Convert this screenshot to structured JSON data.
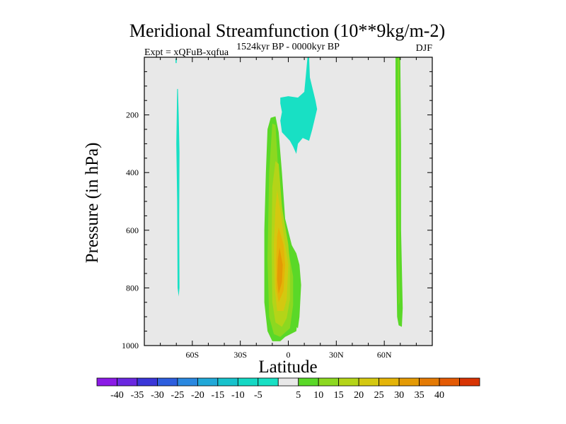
{
  "chart_data": {
    "type": "contour",
    "title": "Meridional Streamfunction (10**9kg/m-2)",
    "experiment": "Expt = xQFuB-xqfua",
    "period": "1524kyr BP - 0000kyr BP",
    "season": "DJF",
    "xlabel": "Latitude",
    "ylabel": "Pressure (in hPa)",
    "xlim": [
      -90,
      90
    ],
    "ylim": [
      1000,
      0
    ],
    "x_ticks": [
      {
        "value": -60,
        "label": "60S"
      },
      {
        "value": -30,
        "label": "30S"
      },
      {
        "value": 0,
        "label": "0"
      },
      {
        "value": 30,
        "label": "30N"
      },
      {
        "value": 60,
        "label": "60N"
      }
    ],
    "y_ticks": [
      {
        "value": 200,
        "label": "200"
      },
      {
        "value": 400,
        "label": "400"
      },
      {
        "value": 600,
        "label": "600"
      },
      {
        "value": 800,
        "label": "800"
      },
      {
        "value": 1000,
        "label": "1000"
      }
    ],
    "background_color": "#e8e8e8",
    "colorbar": {
      "colors": [
        "#8b1ae6",
        "#6a28e0",
        "#3a36d8",
        "#2d5ede",
        "#2a88e0",
        "#21a8d8",
        "#17c2cc",
        "#14d8c4",
        "#18e0c4",
        "#e8e8e8",
        "#5ad828",
        "#8cd820",
        "#b4d418",
        "#d4c810",
        "#e4b408",
        "#e49a04",
        "#e47a04",
        "#e45a04",
        "#d83404"
      ],
      "labels": [
        "-40",
        "-35",
        "-30",
        "-25",
        "-20",
        "-15",
        "-10",
        "-5",
        "5",
        "10",
        "15",
        "20",
        "25",
        "30",
        "35",
        "40"
      ]
    },
    "regions": [
      {
        "name": "sh-negative-strip",
        "level": -5,
        "color": "#18e0c4",
        "points": [
          [
            -70.5,
            20
          ],
          [
            -69.8,
            20
          ],
          [
            -69.8,
            5
          ],
          [
            -70.5,
            5
          ]
        ]
      },
      {
        "name": "sh-negative-strip-2",
        "level": -5,
        "color": "#18e0c4",
        "points": [
          [
            -69.5,
            110
          ],
          [
            -69,
            110
          ],
          [
            -68.5,
            200
          ],
          [
            -68,
            330
          ],
          [
            -68.2,
            560
          ],
          [
            -68,
            800
          ],
          [
            -68.5,
            830
          ],
          [
            -69.2,
            800
          ],
          [
            -69.5,
            500
          ],
          [
            -70,
            300
          ]
        ]
      },
      {
        "name": "upper-trop-negative",
        "level": -5,
        "color": "#18e0c4",
        "points": [
          [
            -5,
            140
          ],
          [
            0,
            135
          ],
          [
            6,
            140
          ],
          [
            10,
            120
          ],
          [
            11,
            60
          ],
          [
            12,
            0
          ],
          [
            13,
            0
          ],
          [
            13.5,
            70
          ],
          [
            17,
            150
          ],
          [
            18,
            180
          ],
          [
            15,
            250
          ],
          [
            13,
            290
          ],
          [
            9,
            280
          ],
          [
            6,
            300
          ],
          [
            5,
            335
          ],
          [
            3,
            310
          ],
          [
            1,
            290
          ],
          [
            -4,
            260
          ],
          [
            -5,
            220
          ],
          [
            -4,
            190
          ],
          [
            -5,
            160
          ]
        ]
      },
      {
        "name": "tropical-positive-5",
        "level": 5,
        "color": "#5ad828",
        "points": [
          [
            -11,
            210
          ],
          [
            -8,
            205
          ],
          [
            -6,
            260
          ],
          [
            -4,
            400
          ],
          [
            -2,
            560
          ],
          [
            3,
            670
          ],
          [
            5,
            720
          ],
          [
            6,
            800
          ],
          [
            6,
            900
          ],
          [
            5,
            950
          ],
          [
            -2,
            970
          ],
          [
            -5,
            985
          ],
          [
            -10,
            985
          ],
          [
            -13,
            950
          ],
          [
            -15,
            850
          ],
          [
            -15,
            600
          ],
          [
            -14,
            400
          ],
          [
            -13,
            250
          ]
        ]
      },
      {
        "name": "tropical-positive-5-east",
        "level": 5,
        "color": "#5ad828",
        "points": [
          [
            2,
            650
          ],
          [
            5,
            680
          ],
          [
            7,
            720
          ],
          [
            8,
            790
          ],
          [
            7,
            900
          ],
          [
            6,
            940
          ],
          [
            4,
            930
          ],
          [
            4,
            780
          ]
        ]
      },
      {
        "name": "tropical-positive-10",
        "level": 10,
        "color": "#8cd820",
        "points": [
          [
            -10,
            230
          ],
          [
            -8,
            235
          ],
          [
            -6,
            420
          ],
          [
            -3,
            560
          ],
          [
            1,
            700
          ],
          [
            3,
            760
          ],
          [
            3,
            860
          ],
          [
            1,
            940
          ],
          [
            -5,
            970
          ],
          [
            -9,
            960
          ],
          [
            -12,
            900
          ],
          [
            -13,
            700
          ],
          [
            -12,
            400
          ]
        ]
      },
      {
        "name": "tropical-positive-15",
        "level": 15,
        "color": "#b4d418",
        "points": [
          [
            -8,
            360
          ],
          [
            -6,
            370
          ],
          [
            -4,
            520
          ],
          [
            0,
            650
          ],
          [
            1,
            720
          ],
          [
            1,
            840
          ],
          [
            -1,
            905
          ],
          [
            -4,
            935
          ],
          [
            -8,
            920
          ],
          [
            -10,
            850
          ],
          [
            -10.5,
            650
          ],
          [
            -10,
            450
          ]
        ]
      },
      {
        "name": "tropical-positive-20",
        "level": 20,
        "color": "#d4c810",
        "points": [
          [
            -7,
            460
          ],
          [
            -5,
            530
          ],
          [
            -2,
            650
          ],
          [
            0,
            720
          ],
          [
            -1,
            840
          ],
          [
            -3,
            880
          ],
          [
            -7,
            880
          ],
          [
            -8.5,
            800
          ],
          [
            -9,
            650
          ],
          [
            -8,
            520
          ]
        ]
      },
      {
        "name": "tropical-positive-25",
        "level": 25,
        "color": "#e4b408",
        "points": [
          [
            -6,
            590
          ],
          [
            -3,
            650
          ],
          [
            -2,
            720
          ],
          [
            -3,
            810
          ],
          [
            -6,
            850
          ],
          [
            -7.5,
            800
          ],
          [
            -7.5,
            700
          ],
          [
            -7,
            620
          ]
        ]
      },
      {
        "name": "tropical-positive-30",
        "level": 30,
        "color": "#e49a04",
        "points": [
          [
            -5.5,
            660
          ],
          [
            -3.5,
            720
          ],
          [
            -4,
            780
          ],
          [
            -6,
            820
          ],
          [
            -7,
            770
          ],
          [
            -6.5,
            700
          ]
        ]
      },
      {
        "name": "nh-positive-strip",
        "level": 5,
        "color": "#5ad828",
        "points": [
          [
            67,
            0
          ],
          [
            70,
            0
          ],
          [
            70.5,
            300
          ],
          [
            70.5,
            600
          ],
          [
            71.5,
            870
          ],
          [
            71,
            935
          ],
          [
            69,
            930
          ],
          [
            68,
            900
          ],
          [
            67.5,
            700
          ],
          [
            67.2,
            400
          ],
          [
            67,
            100
          ]
        ]
      },
      {
        "name": "nh-positive-core",
        "level": 10,
        "color": "#8cd820",
        "points": [
          [
            68.6,
            0
          ],
          [
            69.2,
            0
          ],
          [
            69.3,
            500
          ],
          [
            69.5,
            850
          ],
          [
            69,
            860
          ],
          [
            68.7,
            500
          ]
        ]
      }
    ]
  }
}
